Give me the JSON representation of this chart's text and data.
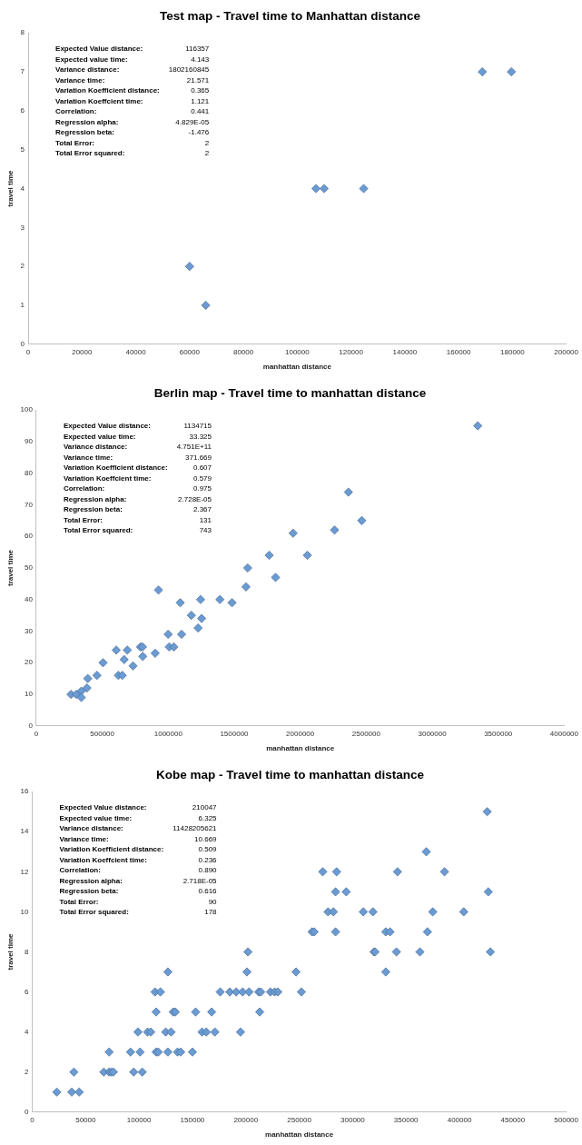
{
  "chart_data": [
    {
      "type": "scatter",
      "title": "Test map - Travel time to Manhattan distance",
      "xlabel": "manhattan distance",
      "ylabel": "travel time",
      "marker": "diamond",
      "color": "#6a9bd3",
      "x": [
        60000,
        66000,
        107000,
        110000,
        124700,
        168800,
        179600
      ],
      "values": [
        2,
        1,
        4,
        4,
        4,
        7,
        7
      ],
      "xlim": [
        0,
        200000
      ],
      "xticks": [
        0,
        20000,
        40000,
        60000,
        80000,
        100000,
        120000,
        140000,
        160000,
        180000,
        200000
      ],
      "ylim": [
        0,
        8
      ],
      "yticks": [
        0,
        1,
        2,
        3,
        4,
        5,
        6,
        7,
        8
      ],
      "annotations": [
        "Expected Value distance:",
        "116357",
        "Expected value time:",
        "4.143",
        "Variance distance:",
        "1802160845",
        "Variance time:",
        "21.571",
        "Variation Koefficient distance:",
        "0.365",
        "Variation Koeffcient time:",
        "1.121",
        "Correlation:",
        "0.441",
        "Regression alpha:",
        "4.829E-05",
        "Regression beta:",
        "-1.476",
        "Total Error:",
        "2",
        "Total Error squared:",
        "2"
      ]
    },
    {
      "type": "scatter",
      "title": "Berlin map - Travel time to manhattan distance",
      "xlabel": "manhattan distance",
      "ylabel": "travel time",
      "marker": "diamond",
      "color": "#6a9bd3",
      "x": [
        3345000,
        2365000,
        2466000,
        2260000,
        1946000,
        1765000,
        2054000,
        1602000,
        1813000,
        1589000,
        926000,
        1091000,
        1245000,
        1391000,
        1483000,
        1175000,
        1253000,
        1226000,
        999000,
        1101000,
        1007000,
        1042000,
        790000,
        805000,
        606000,
        690000,
        901000,
        807000,
        666000,
        506000,
        733000,
        460000,
        622000,
        652000,
        390000,
        384000,
        341000,
        263000,
        303000,
        341000
      ],
      "values": [
        95,
        74,
        65,
        62,
        61,
        54,
        54,
        50,
        47,
        44,
        43,
        39,
        40,
        40,
        39,
        35,
        34,
        31,
        29,
        29,
        25,
        25,
        25,
        25,
        24,
        24,
        23,
        22,
        21,
        20,
        19,
        16,
        16,
        16,
        15,
        12,
        11,
        10,
        10,
        9
      ],
      "xlim": [
        0,
        4000000
      ],
      "xticks": [
        0,
        500000,
        1000000,
        1500000,
        2000000,
        2500000,
        3000000,
        3500000,
        4000000
      ],
      "ylim": [
        0,
        100
      ],
      "yticks": [
        0,
        10,
        20,
        30,
        40,
        50,
        60,
        70,
        80,
        90,
        100
      ],
      "annotations": [
        "Expected Value distance:",
        "1134715",
        "Expected value time:",
        "33.325",
        "Variance distance:",
        "4.751E+11",
        "Variance time:",
        "371.669",
        "Variation Koefficient distance:",
        "0.607",
        "Variation Koeffcient time:",
        "0.579",
        "Correlation:",
        "0.975",
        "Regression alpha:",
        "2.728E-05",
        "Regression beta:",
        "2.367",
        "Total Error:",
        "131",
        "Total Error squared:",
        "743"
      ]
    },
    {
      "type": "scatter",
      "title": "Kobe map - Travel time to manhattan distance",
      "xlabel": "manhattan distance",
      "ylabel": "travel time",
      "marker": "diamond",
      "color": "#6a9bd3",
      "x": [
        426000,
        369000,
        272000,
        285000,
        342000,
        386000,
        284000,
        294000,
        427000,
        277000,
        282000,
        310000,
        319000,
        375000,
        404000,
        262000,
        264000,
        284000,
        331000,
        335000,
        370000,
        202000,
        320000,
        321000,
        341000,
        363000,
        429000,
        127000,
        201000,
        247000,
        331000,
        115000,
        120000,
        176000,
        185000,
        191000,
        197000,
        203000,
        212000,
        214000,
        223000,
        227000,
        230000,
        252000,
        116000,
        132000,
        134000,
        153000,
        168000,
        213000,
        99000,
        108000,
        111000,
        125000,
        130000,
        159000,
        163000,
        171000,
        195000,
        72000,
        92000,
        101000,
        116000,
        118000,
        127000,
        136000,
        139000,
        150000,
        39000,
        67000,
        72000,
        74000,
        76000,
        95000,
        103000,
        23000,
        37000,
        44000
      ],
      "values": [
        15,
        13,
        12,
        12,
        12,
        12,
        11,
        11,
        11,
        10,
        10,
        10,
        10,
        10,
        10,
        9,
        9,
        9,
        9,
        9,
        9,
        8,
        8,
        8,
        8,
        8,
        8,
        7,
        7,
        7,
        7,
        6,
        6,
        6,
        6,
        6,
        6,
        6,
        6,
        6,
        6,
        6,
        6,
        6,
        5,
        5,
        5,
        5,
        5,
        5,
        4,
        4,
        4,
        4,
        4,
        4,
        4,
        4,
        4,
        3,
        3,
        3,
        3,
        3,
        3,
        3,
        3,
        3,
        2,
        2,
        2,
        2,
        2,
        2,
        2,
        1,
        1,
        1
      ],
      "xlim": [
        0,
        500000
      ],
      "xticks": [
        0,
        50000,
        100000,
        150000,
        200000,
        250000,
        300000,
        350000,
        400000,
        450000,
        500000
      ],
      "ylim": [
        0,
        16
      ],
      "yticks": [
        0,
        2,
        4,
        6,
        8,
        10,
        12,
        14,
        16
      ],
      "annotations": [
        "Expected Value distance:",
        "210047",
        "Expected value time:",
        "6.325",
        "Variance distance:",
        "11428205621",
        "Variance time:",
        "10.669",
        "Variation Koefficient distance:",
        "0.509",
        "Variation Koeffcient time:",
        "0.236",
        "Correlation:",
        "0.890",
        "Regression alpha:",
        "2.718E-05",
        "Regression beta:",
        "0.616",
        "Total Error:",
        "90",
        "Total Error squared:",
        "178"
      ]
    }
  ]
}
